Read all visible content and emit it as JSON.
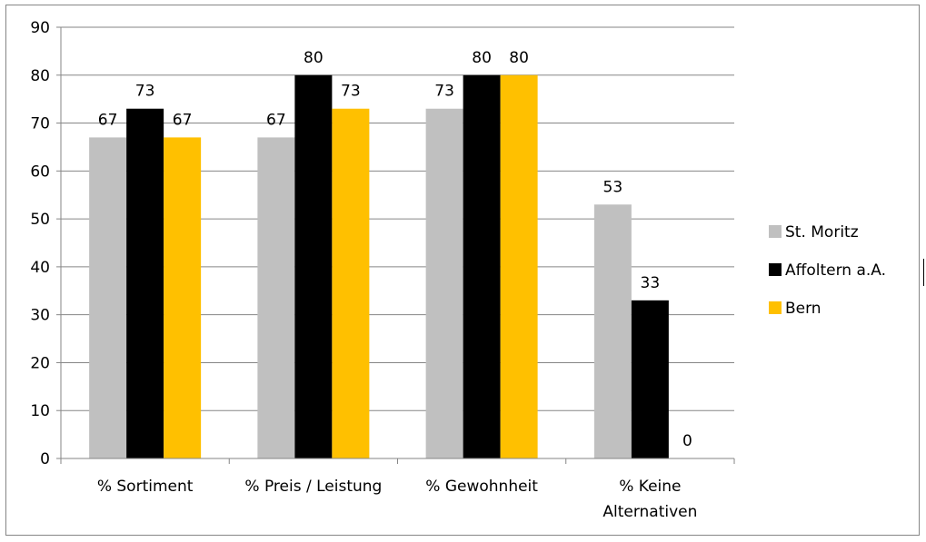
{
  "chart_data": {
    "type": "bar",
    "categories": [
      "% Sortiment",
      "% Preis / Leistung",
      "% Gewohnheit",
      "% Keine Alternativen"
    ],
    "category_lines": [
      [
        "% Sortiment"
      ],
      [
        "% Preis / Leistung"
      ],
      [
        "% Gewohnheit"
      ],
      [
        "% Keine",
        "Alternativen"
      ]
    ],
    "series": [
      {
        "name": "St. Moritz",
        "color": "#c0c0c0",
        "values": [
          67,
          67,
          73,
          53
        ]
      },
      {
        "name": "Affoltern a.A.",
        "color": "#000000",
        "values": [
          73,
          80,
          80,
          33
        ]
      },
      {
        "name": "Bern",
        "color": "#ffc000",
        "values": [
          67,
          73,
          80,
          0
        ]
      }
    ],
    "ylim": [
      0,
      90
    ],
    "yticks": [
      0,
      10,
      20,
      30,
      40,
      50,
      60,
      70,
      80,
      90
    ],
    "grid": true,
    "legend_position": "right",
    "data_labels": true
  }
}
